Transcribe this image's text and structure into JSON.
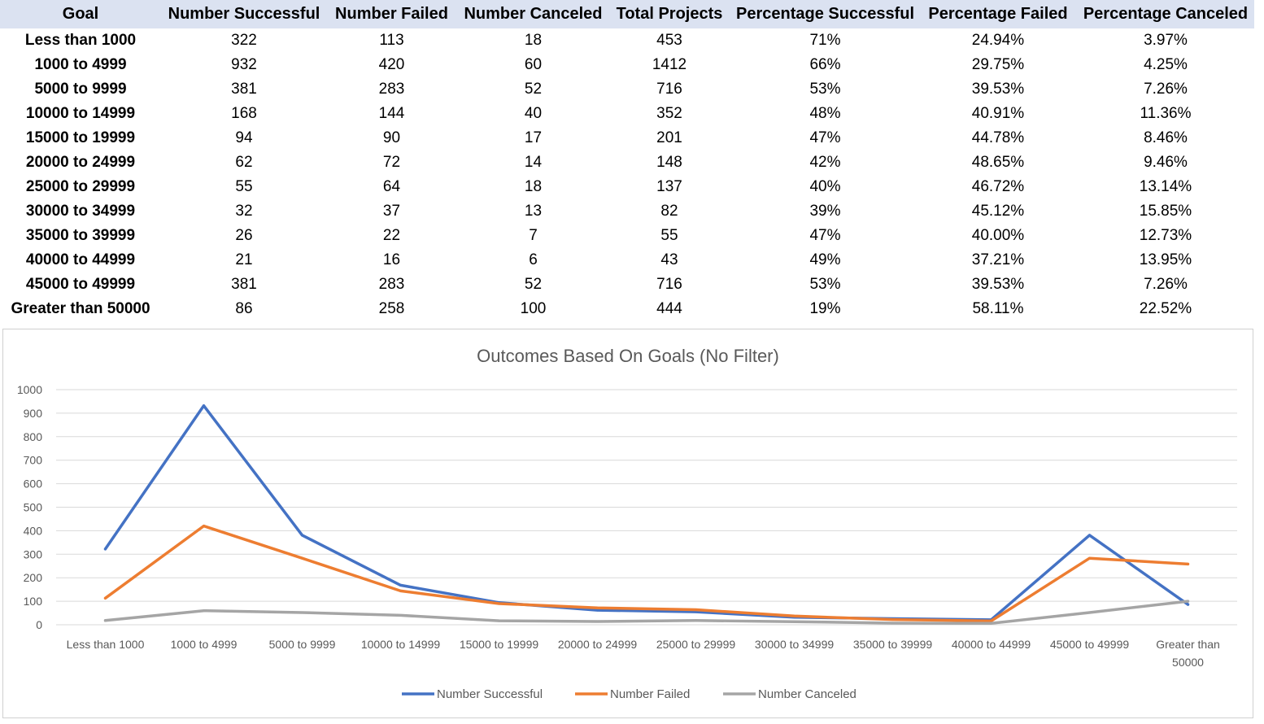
{
  "table": {
    "columns": [
      "Goal",
      "Number Successful",
      "Number Failed",
      "Number Canceled",
      "Total Projects",
      "Percentage Successful",
      "Percentage Failed",
      "Percentage Canceled"
    ],
    "rows": [
      [
        "Less than 1000",
        "322",
        "113",
        "18",
        "453",
        "71%",
        "24.94%",
        "3.97%"
      ],
      [
        "1000 to 4999",
        "932",
        "420",
        "60",
        "1412",
        "66%",
        "29.75%",
        "4.25%"
      ],
      [
        "5000 to 9999",
        "381",
        "283",
        "52",
        "716",
        "53%",
        "39.53%",
        "7.26%"
      ],
      [
        "10000 to 14999",
        "168",
        "144",
        "40",
        "352",
        "48%",
        "40.91%",
        "11.36%"
      ],
      [
        "15000 to 19999",
        "94",
        "90",
        "17",
        "201",
        "47%",
        "44.78%",
        "8.46%"
      ],
      [
        "20000 to 24999",
        "62",
        "72",
        "14",
        "148",
        "42%",
        "48.65%",
        "9.46%"
      ],
      [
        "25000 to 29999",
        "55",
        "64",
        "18",
        "137",
        "40%",
        "46.72%",
        "13.14%"
      ],
      [
        "30000 to 34999",
        "32",
        "37",
        "13",
        "82",
        "39%",
        "45.12%",
        "15.85%"
      ],
      [
        "35000 to 39999",
        "26",
        "22",
        "7",
        "55",
        "47%",
        "40.00%",
        "12.73%"
      ],
      [
        "40000 to 44999",
        "21",
        "16",
        "6",
        "43",
        "49%",
        "37.21%",
        "13.95%"
      ],
      [
        "45000 to 49999",
        "381",
        "283",
        "52",
        "716",
        "53%",
        "39.53%",
        "7.26%"
      ],
      [
        "Greater than 50000",
        "86",
        "258",
        "100",
        "444",
        "19%",
        "58.11%",
        "22.52%"
      ]
    ]
  },
  "chart_data": {
    "type": "line",
    "title": "Outcomes Based On Goals (No Filter)",
    "xlabel": "",
    "ylabel": "",
    "ylim": [
      0,
      1000
    ],
    "yticks": [
      0,
      100,
      200,
      300,
      400,
      500,
      600,
      700,
      800,
      900,
      1000
    ],
    "grid": true,
    "legend_position": "bottom",
    "categories": [
      [
        "Less than 1000"
      ],
      [
        "1000 to 4999"
      ],
      [
        "5000 to 9999"
      ],
      [
        "10000 to 14999"
      ],
      [
        "15000 to 19999"
      ],
      [
        "20000 to 24999"
      ],
      [
        "25000 to 29999"
      ],
      [
        "30000 to 34999"
      ],
      [
        "35000 to 39999"
      ],
      [
        "40000 to 44999"
      ],
      [
        "45000 to 49999"
      ],
      [
        "Greater than",
        "50000"
      ]
    ],
    "series": [
      {
        "name": "Number Successful",
        "color": "#4472c4",
        "values": [
          322,
          932,
          381,
          168,
          94,
          62,
          55,
          32,
          26,
          21,
          381,
          86
        ]
      },
      {
        "name": "Number Failed",
        "color": "#ed7d31",
        "values": [
          113,
          420,
          283,
          144,
          90,
          72,
          64,
          37,
          22,
          16,
          283,
          258
        ]
      },
      {
        "name": "Number Canceled",
        "color": "#a5a5a5",
        "values": [
          18,
          60,
          52,
          40,
          17,
          14,
          18,
          13,
          7,
          6,
          52,
          100
        ]
      }
    ]
  },
  "colors": {
    "header_band": "#dbe2f1",
    "gridline": "#d9d9d9",
    "axis_text": "#595959"
  }
}
